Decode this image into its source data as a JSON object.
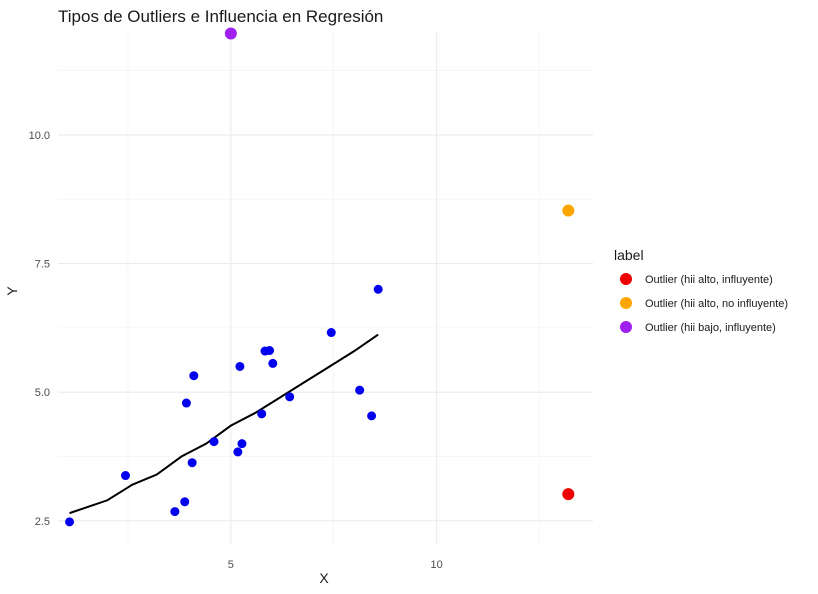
{
  "chart_data": {
    "type": "scatter",
    "title": "Tipos de Outliers e Influencia en Regresión",
    "xlabel": "X",
    "ylabel": "Y",
    "xlim": [
      0.8,
      13.8
    ],
    "ylim": [
      2.05,
      12.0
    ],
    "x_ticks": [
      {
        "value": 5,
        "label": "5"
      },
      {
        "value": 10,
        "label": "10"
      }
    ],
    "y_ticks": [
      {
        "value": 2.5,
        "label": "2.5"
      },
      {
        "value": 5.0,
        "label": "5.0"
      },
      {
        "value": 7.5,
        "label": "7.5"
      },
      {
        "value": 10.0,
        "label": "10.0"
      }
    ],
    "grid": true,
    "legend": {
      "title": "label",
      "placement": "right",
      "entries": [
        {
          "label": "Outlier (hii alto, influyente)",
          "color": "#ee0000"
        },
        {
          "label": "Outlier (hii alto, no influyente)",
          "color": "#ffa500"
        },
        {
          "label": "Outlier (hii bajo, influyente)",
          "color": "#a020f0"
        }
      ]
    },
    "series": [
      {
        "color": "#0000ee",
        "points": [
          [
            1.08,
            2.48
          ],
          [
            2.44,
            3.38
          ],
          [
            3.64,
            2.68
          ],
          [
            3.88,
            2.87
          ],
          [
            3.92,
            4.79
          ],
          [
            4.06,
            3.63
          ],
          [
            4.1,
            5.32
          ],
          [
            4.59,
            4.04
          ],
          [
            5.17,
            3.84
          ],
          [
            5.22,
            5.5
          ],
          [
            5.27,
            4.0
          ],
          [
            5.75,
            4.58
          ],
          [
            5.83,
            5.8
          ],
          [
            5.94,
            5.81
          ],
          [
            6.02,
            5.56
          ],
          [
            6.43,
            4.91
          ],
          [
            7.44,
            6.16
          ],
          [
            8.13,
            5.04
          ],
          [
            8.42,
            4.54
          ],
          [
            8.58,
            7.0
          ]
        ]
      },
      {
        "name": "Outlier (hii alto, influyente)",
        "color": "#ee0000",
        "points": [
          [
            13.2,
            3.02
          ]
        ]
      },
      {
        "name": "Outlier (hii alto, no influyente)",
        "color": "#ffa500",
        "points": [
          [
            13.2,
            8.53
          ]
        ]
      },
      {
        "name": "Outlier (hii bajo, influyente)",
        "color": "#a020f0",
        "points": [
          [
            5.0,
            11.97
          ]
        ]
      }
    ],
    "regression_line": {
      "color": "#000000",
      "points": [
        [
          1.08,
          2.65
        ],
        [
          2.0,
          2.9
        ],
        [
          2.6,
          3.2
        ],
        [
          3.2,
          3.4
        ],
        [
          3.8,
          3.75
        ],
        [
          4.4,
          4.0
        ],
        [
          5.0,
          4.35
        ],
        [
          5.6,
          4.6
        ],
        [
          6.2,
          4.9
        ],
        [
          6.8,
          5.2
        ],
        [
          7.4,
          5.5
        ],
        [
          8.0,
          5.8
        ],
        [
          8.58,
          6.12
        ]
      ]
    }
  }
}
